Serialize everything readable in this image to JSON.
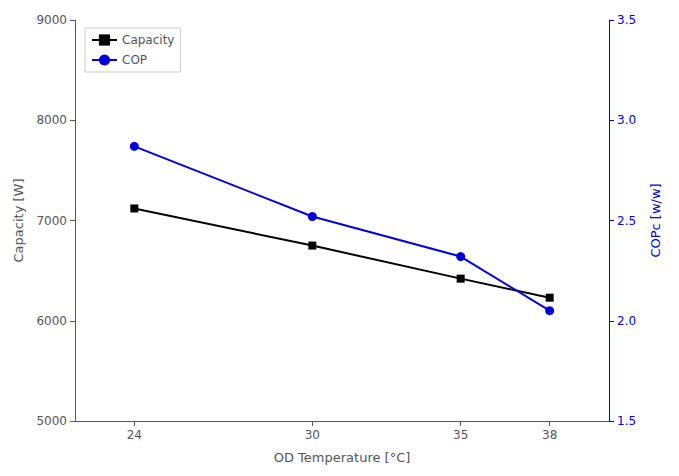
{
  "chart_data": {
    "type": "line",
    "xlabel": "OD Temperature [°C]",
    "ylabel": "Capacity [W]",
    "y2label": "COPc [w/w]",
    "x": [
      24,
      30,
      35,
      38
    ],
    "xlim": [
      22,
      40
    ],
    "xticks": [
      24,
      30,
      35,
      38
    ],
    "ylim": [
      5000,
      9000
    ],
    "yticks": [
      5000,
      6000,
      7000,
      8000,
      9000
    ],
    "y2lim": [
      1.5,
      3.5
    ],
    "y2ticks": [
      1.5,
      {
        "value": 2.0,
        "label": "2.0"
      },
      2.5,
      {
        "value": 3.0,
        "label": "3.0"
      },
      3.5
    ],
    "series": [
      {
        "name": "Capacity",
        "color": "#000000",
        "marker": "square",
        "values": [
          7120,
          6750,
          6420,
          6230
        ]
      },
      {
        "name": "COP",
        "color": "#0000dd",
        "marker": "circle",
        "axis": "y2",
        "values": [
          2.87,
          2.52,
          2.32,
          2.05
        ]
      }
    ],
    "legend": "upper left",
    "grid": false
  }
}
